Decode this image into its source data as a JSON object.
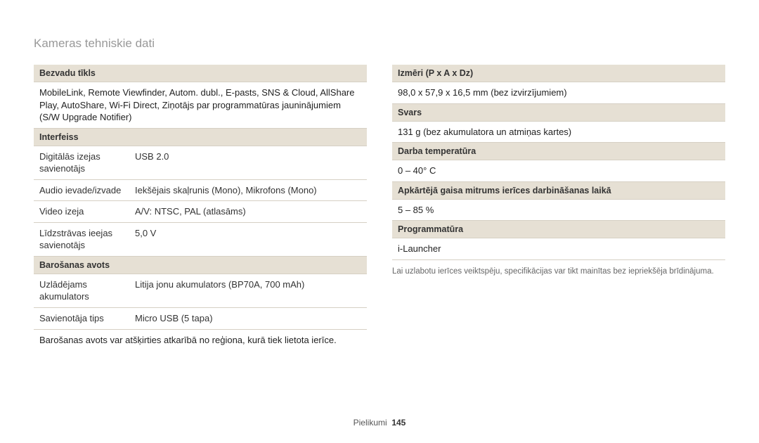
{
  "page_title": "Kameras tehniskie dati",
  "left": {
    "wireless_header": "Bezvadu tīkls",
    "wireless_body": "MobileLink, Remote Viewfinder, Autom. dubl., E-pasts, SNS & Cloud, AllShare Play, AutoShare, Wi-Fi Direct, Ziņotājs par programmatūras jauninājumiem (S/W Upgrade Notifier)",
    "interface_header": "Interfeiss",
    "interface_rows": [
      {
        "label": "Digitālās izejas savienotājs",
        "value": "USB 2.0"
      },
      {
        "label": "Audio ievade/izvade",
        "value": "Iekšējais skaļrunis (Mono), Mikrofons (Mono)"
      },
      {
        "label": "Video izeja",
        "value": "A/V: NTSC, PAL (atlasāms)"
      },
      {
        "label": "Līdzstrāvas ieejas savienotājs",
        "value": "5,0 V"
      }
    ],
    "power_header": "Barošanas avots",
    "power_rows": [
      {
        "label": "Uzlādējams akumulators",
        "value": "Litija jonu akumulators (BP70A, 700 mAh)"
      },
      {
        "label": "Savienotāja tips",
        "value": "Micro USB (5 tapa)"
      }
    ],
    "power_note": "Barošanas avots var atšķirties atkarībā no reģiona, kurā tiek lietota ierīce."
  },
  "right": {
    "dim_header": "Izmēri (P x A x Dz)",
    "dim_value": "98,0 x 57,9 x 16,5 mm (bez izvirzījumiem)",
    "weight_header": "Svars",
    "weight_value": "131 g (bez akumulatora un atmiņas kartes)",
    "temp_header": "Darba temperatūra",
    "temp_value": "0 ‒ 40° C",
    "hum_header": "Apkārtējā gaisa mitrums ierīces darbināšanas laikā",
    "hum_value": "5 ‒ 85 %",
    "sw_header": "Programmatūra",
    "sw_value": "i-Launcher",
    "disclaimer": "Lai uzlabotu ierīces veiktspēju, specifikācijas var tikt mainītas bez iepriekšēja brīdinājuma."
  },
  "footer": {
    "label": "Pielikumi",
    "page": "145"
  },
  "colors": {
    "header_bg": "#e6e0d4",
    "border": "#d6d0c4",
    "title": "#999999"
  }
}
